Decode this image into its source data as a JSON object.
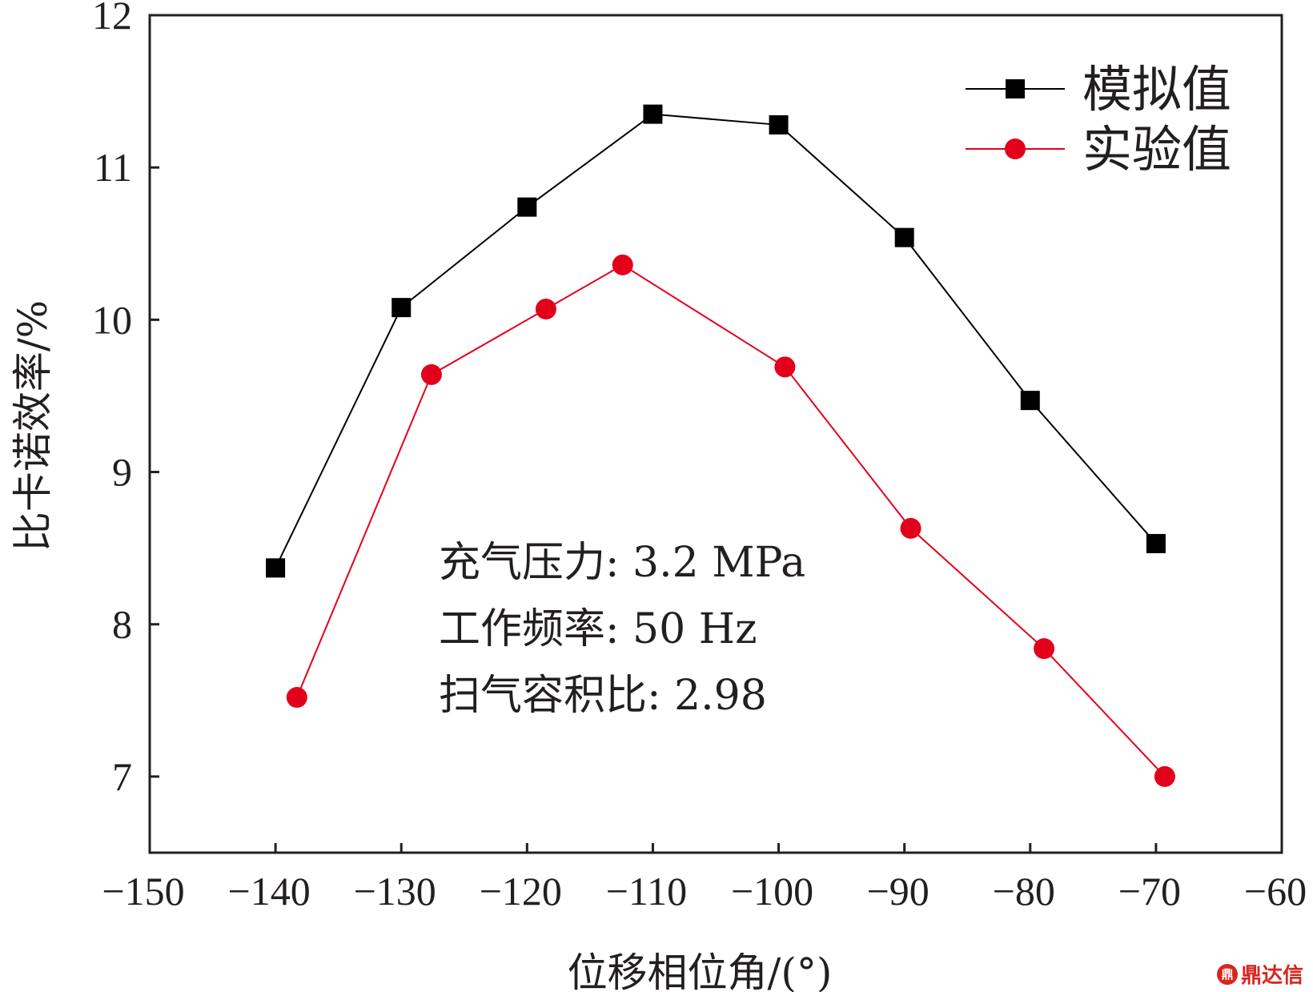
{
  "chart_data": {
    "type": "line",
    "xlabel": "位移相位角/(°)",
    "ylabel": "比卡诺效率/%",
    "xlim": [
      -150,
      -60
    ],
    "ylim": [
      6.5,
      12
    ],
    "x_ticks": [
      -150,
      -140,
      -130,
      -120,
      -110,
      -100,
      -90,
      -80,
      -70,
      -60
    ],
    "x_tick_labels": [
      "−150",
      "−140",
      "−130",
      "−120",
      "−110",
      "−100",
      "−90",
      "−80",
      "−70",
      "−60"
    ],
    "y_ticks": [
      7,
      8,
      9,
      10,
      11,
      12
    ],
    "y_tick_labels": [
      "7",
      "8",
      "9",
      "10",
      "11",
      "12"
    ],
    "legend_position": "top-right",
    "grid": false,
    "series": [
      {
        "name": "模拟值",
        "color": "#000000",
        "marker": "square",
        "x": [
          -140,
          -130,
          -120,
          -110,
          -100,
          -90,
          -80,
          -70
        ],
        "y": [
          8.37,
          10.08,
          10.74,
          11.35,
          11.28,
          10.54,
          9.47,
          8.53
        ]
      },
      {
        "name": "实验值",
        "color": "#e3001b",
        "marker": "circle",
        "x": [
          -138.3,
          -127.6,
          -118.5,
          -112.4,
          -99.5,
          -89.5,
          -78.9,
          -69.3
        ],
        "y": [
          7.52,
          9.64,
          10.07,
          10.36,
          9.69,
          8.63,
          7.84,
          7.0
        ]
      }
    ],
    "annotations": [
      "充气压力: 3.2 MPa",
      "工作频率: 50 Hz",
      "扫气容积比: 2.98"
    ]
  },
  "watermark": {
    "logo": "鼎",
    "text": "鼎达信"
  }
}
